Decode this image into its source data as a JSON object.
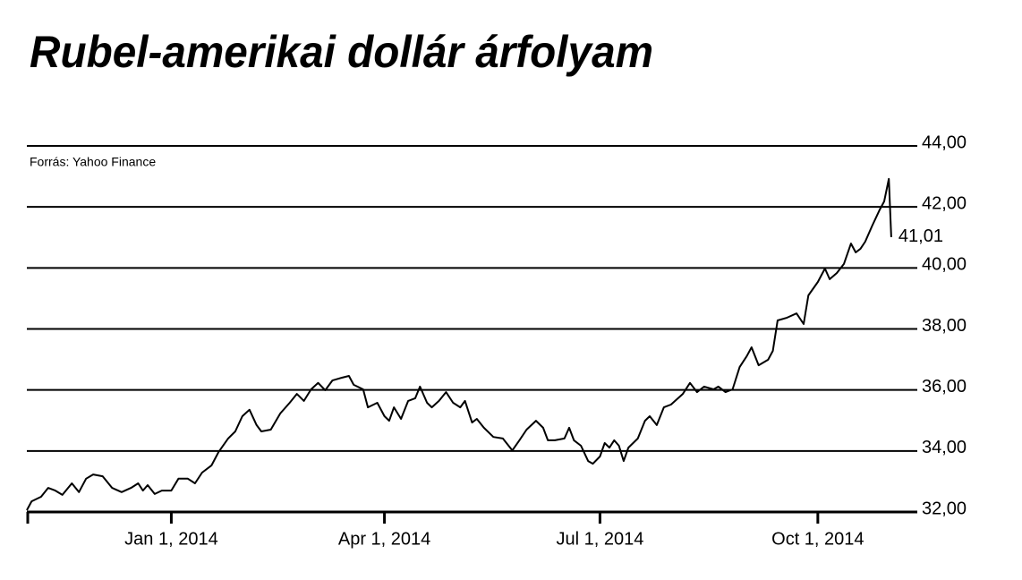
{
  "chart_data": {
    "type": "line",
    "title": "Rubel-amerikai dollár árfolyam",
    "source": "Forrás: Yahoo Finance",
    "x": [
      "2013-11-01",
      "2013-11-03",
      "2013-11-07",
      "2013-11-10",
      "2013-11-13",
      "2013-11-16",
      "2013-11-20",
      "2013-11-23",
      "2013-11-26",
      "2013-11-29",
      "2013-12-03",
      "2013-12-07",
      "2013-12-11",
      "2013-12-15",
      "2013-12-18",
      "2013-12-20",
      "2013-12-22",
      "2013-12-25",
      "2013-12-28",
      "2014-01-01",
      "2014-01-04",
      "2014-01-08",
      "2014-01-11",
      "2014-01-14",
      "2014-01-18",
      "2014-01-21",
      "2014-01-25",
      "2014-01-28",
      "2014-01-31",
      "2014-02-03",
      "2014-02-06",
      "2014-02-08",
      "2014-02-12",
      "2014-02-16",
      "2014-02-20",
      "2014-02-23",
      "2014-02-26",
      "2014-03-01",
      "2014-03-04",
      "2014-03-07",
      "2014-03-10",
      "2014-03-14",
      "2014-03-17",
      "2014-03-19",
      "2014-03-23",
      "2014-03-25",
      "2014-03-29",
      "2014-04-01",
      "2014-04-03",
      "2014-04-05",
      "2014-04-08",
      "2014-04-11",
      "2014-04-14",
      "2014-04-16",
      "2014-04-19",
      "2014-04-21",
      "2014-04-24",
      "2014-04-27",
      "2014-04-30",
      "2014-05-03",
      "2014-05-05",
      "2014-05-08",
      "2014-05-10",
      "2014-05-13",
      "2014-05-17",
      "2014-05-21",
      "2014-05-25",
      "2014-05-28",
      "2014-05-31",
      "2014-06-04",
      "2014-06-07",
      "2014-06-09",
      "2014-06-12",
      "2014-06-16",
      "2014-06-18",
      "2014-06-20",
      "2014-06-23",
      "2014-06-26",
      "2014-06-28",
      "2014-07-01",
      "2014-07-03",
      "2014-07-05",
      "2014-07-07",
      "2014-07-09",
      "2014-07-11",
      "2014-07-13",
      "2014-07-17",
      "2014-07-20",
      "2014-07-22",
      "2014-07-25",
      "2014-07-28",
      "2014-07-31",
      "2014-08-03",
      "2014-08-05",
      "2014-08-08",
      "2014-08-11",
      "2014-08-14",
      "2014-08-18",
      "2014-08-20",
      "2014-08-23",
      "2014-08-26",
      "2014-08-29",
      "2014-09-01",
      "2014-09-03",
      "2014-09-06",
      "2014-09-10",
      "2014-09-12",
      "2014-09-14",
      "2014-09-18",
      "2014-09-22",
      "2014-09-25",
      "2014-09-27",
      "2014-10-01",
      "2014-10-04",
      "2014-10-06",
      "2014-10-09",
      "2014-10-12",
      "2014-10-15",
      "2014-10-17",
      "2014-10-19",
      "2014-10-21",
      "2014-10-24",
      "2014-10-27",
      "2014-10-29",
      "2014-10-31",
      "2014-11-01"
    ],
    "series": [
      {
        "color": "#000000",
        "values": [
          32.06,
          32.35,
          32.5,
          32.79,
          32.7,
          32.56,
          32.94,
          32.65,
          33.09,
          33.23,
          33.17,
          32.79,
          32.65,
          32.79,
          32.94,
          32.7,
          32.88,
          32.59,
          32.7,
          32.7,
          33.09,
          33.09,
          32.94,
          33.29,
          33.53,
          33.97,
          34.41,
          34.64,
          35.14,
          35.35,
          34.85,
          34.64,
          34.7,
          35.23,
          35.58,
          35.87,
          35.64,
          36.02,
          36.23,
          35.99,
          36.31,
          36.4,
          36.46,
          36.17,
          36.02,
          35.43,
          35.58,
          35.14,
          34.99,
          35.43,
          35.05,
          35.64,
          35.73,
          36.11,
          35.58,
          35.43,
          35.64,
          35.93,
          35.58,
          35.43,
          35.64,
          34.93,
          35.05,
          34.76,
          34.46,
          34.41,
          34.02,
          34.35,
          34.7,
          34.99,
          34.76,
          34.35,
          34.35,
          34.41,
          34.76,
          34.35,
          34.17,
          33.67,
          33.58,
          33.82,
          34.26,
          34.11,
          34.35,
          34.17,
          33.67,
          34.11,
          34.41,
          34.99,
          35.14,
          34.85,
          35.43,
          35.52,
          35.73,
          35.87,
          36.23,
          35.93,
          36.11,
          36.02,
          36.11,
          35.93,
          36.02,
          36.75,
          37.11,
          37.4,
          36.81,
          36.99,
          37.28,
          38.28,
          38.37,
          38.51,
          38.16,
          39.1,
          39.54,
          39.98,
          39.63,
          39.83,
          40.13,
          40.8,
          40.51,
          40.63,
          40.86,
          41.39,
          41.89,
          42.18,
          42.92,
          41.01
        ]
      }
    ],
    "last_value_label": "41,01",
    "xlim": [
      "2013-11-01",
      "2014-11-12"
    ],
    "xticks": [
      {
        "value": "2014-01-01",
        "label": "Jan 1, 2014"
      },
      {
        "value": "2014-04-01",
        "label": "Apr 1, 2014"
      },
      {
        "value": "2014-07-01",
        "label": "Jul 1, 2014"
      },
      {
        "value": "2014-10-01",
        "label": "Oct 1, 2014"
      }
    ],
    "ylim": [
      32,
      44
    ],
    "yticks": [
      {
        "value": 32,
        "label": "32,00"
      },
      {
        "value": 34,
        "label": "34,00"
      },
      {
        "value": 36,
        "label": "36,00"
      },
      {
        "value": 38,
        "label": "38,00"
      },
      {
        "value": 40,
        "label": "40,00"
      },
      {
        "value": 42,
        "label": "42,00"
      },
      {
        "value": 44,
        "label": "44,00"
      }
    ],
    "grid": true
  }
}
